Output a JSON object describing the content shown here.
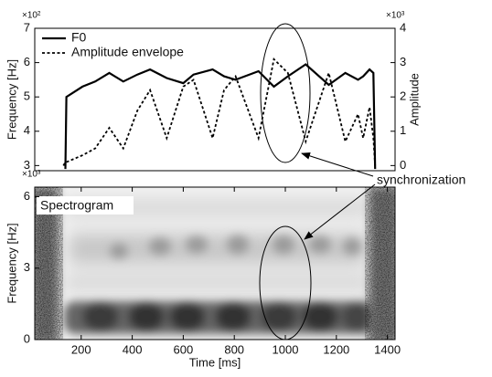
{
  "chart_data": [
    {
      "type": "line",
      "legend": "upper-left",
      "x": [
        130,
        138,
        142,
        205,
        255,
        310,
        365,
        420,
        470,
        535,
        600,
        640,
        715,
        760,
        805,
        895,
        955,
        1010,
        1080,
        1170,
        1235,
        1285,
        1305,
        1330,
        1345,
        1352
      ],
      "xlim": [
        18,
        1430
      ],
      "ylabel": "Frequency [Hz]",
      "y_multiplier": "×10²",
      "ylim": [
        2.85,
        7
      ],
      "yticks": [
        3,
        4,
        5,
        6,
        7
      ],
      "y2label": "Amplitude",
      "y2_multiplier": "×10³",
      "y2lim": [
        -0.15,
        4
      ],
      "y2ticks": [
        0,
        1,
        2,
        3,
        4
      ],
      "series": [
        {
          "name": "F0",
          "color": "#000000",
          "line_style": "solid",
          "values": [
            null,
            2.9,
            5.0,
            5.3,
            5.45,
            5.7,
            5.45,
            5.65,
            5.8,
            5.55,
            5.4,
            5.65,
            5.8,
            5.6,
            5.5,
            5.75,
            5.3,
            5.6,
            5.95,
            5.35,
            5.7,
            5.5,
            5.6,
            5.8,
            5.7,
            2.9
          ]
        },
        {
          "name": "Amplitude envelope",
          "color": "#000000",
          "line_style": "dotted",
          "axis": "y2",
          "values": [
            0.0,
            0.1,
            0.1,
            0.3,
            0.5,
            1.1,
            0.5,
            1.6,
            2.2,
            0.8,
            2.3,
            2.5,
            0.8,
            2.2,
            2.6,
            0.8,
            3.1,
            2.7,
            0.7,
            2.7,
            0.7,
            1.5,
            0.8,
            1.7,
            0.8,
            0.0
          ]
        }
      ],
      "annotation": "synchronization"
    },
    {
      "type": "spectrogram",
      "label": "Spectrogram",
      "xlabel": "Time [ms]",
      "xlim": [
        18,
        1430
      ],
      "xticks": [
        200,
        400,
        600,
        800,
        1000,
        1200,
        1400
      ],
      "ylabel": "Frequency [Hz]",
      "y_multiplier": "×10³",
      "ylim": [
        0,
        6.4
      ],
      "yticks": [
        0,
        3,
        6
      ]
    }
  ]
}
